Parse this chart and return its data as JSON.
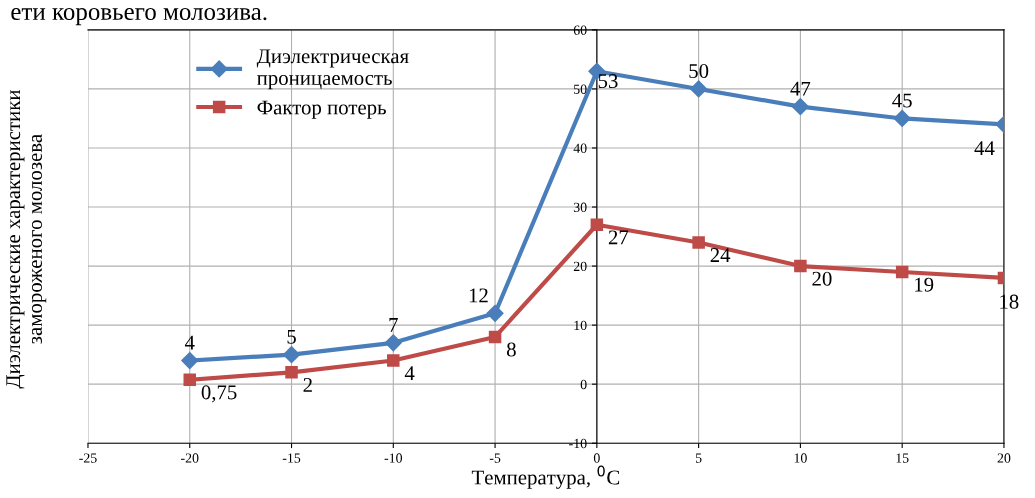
{
  "chart_data": {
    "type": "line",
    "annotations": [
      "ети коровьего молозива."
    ],
    "xlabel": "Температура, $^{0}$C",
    "ylabel": "Диэлектрические характеристики\nзамороженого молозева",
    "x": [
      -20,
      -15,
      -10,
      -5,
      0,
      5,
      10,
      15,
      20
    ],
    "series": [
      {
        "name": "Диэлектрическая\nпроницаемость",
        "color": "#4a7ebb",
        "marker": "diamond",
        "values": [
          4,
          5,
          7,
          12,
          53,
          50,
          47,
          45,
          44
        ],
        "value_labels": [
          "4",
          "5",
          "7",
          "12",
          "53",
          "50",
          "47",
          "45",
          "44"
        ]
      },
      {
        "name": "Фактор потерь",
        "color": "#be4b48",
        "marker": "square",
        "values": [
          0.75,
          2,
          4,
          8,
          27,
          24,
          20,
          19,
          18
        ],
        "value_labels": [
          "0,75",
          "2",
          "4",
          "8",
          "27",
          "24",
          "20",
          "19",
          "18"
        ]
      }
    ],
    "xlim": [
      -25,
      20
    ],
    "xticks": [
      -25,
      -20,
      -15,
      -10,
      -5,
      0,
      5,
      10,
      15,
      20
    ],
    "ylim": [
      -10,
      60
    ],
    "yticks": [
      -10,
      0,
      10,
      20,
      30,
      40,
      50,
      60
    ],
    "grid": true,
    "legend": "top left",
    "line_style": "solid"
  }
}
